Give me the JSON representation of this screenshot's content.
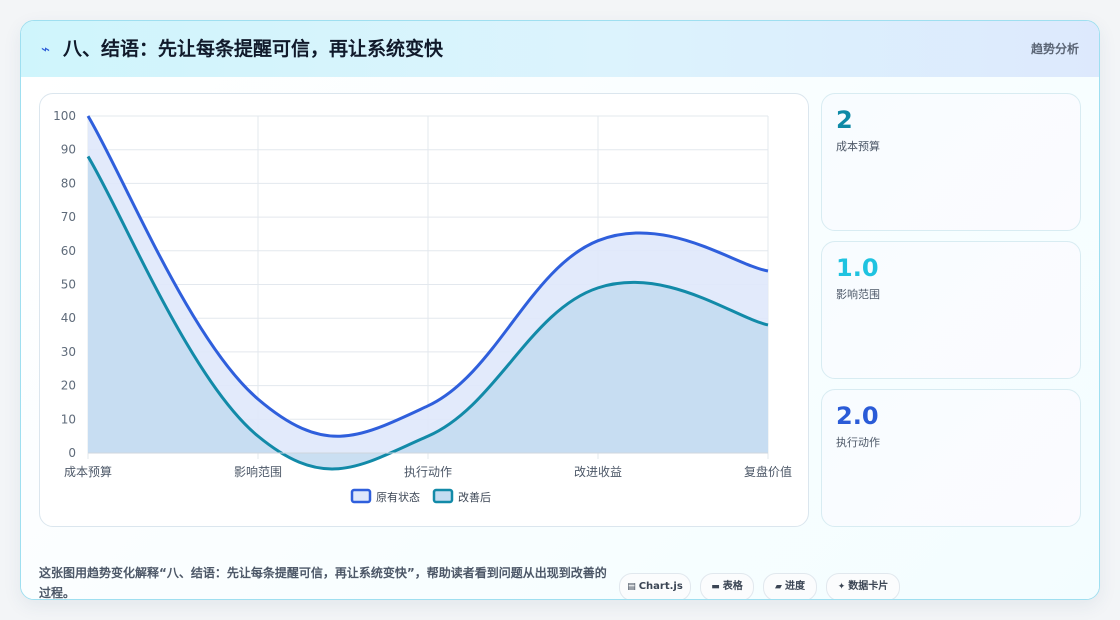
{
  "header": {
    "icon": "lightning-icon",
    "title": "八、结语：先让每条提醒可信，再让系统变快",
    "tag": "趋势分析"
  },
  "chart_data": {
    "type": "area",
    "categories": [
      "成本预算",
      "影响范围",
      "执行动作",
      "改进收益",
      "复盘价值"
    ],
    "ylim": [
      0,
      100
    ],
    "yticks": [
      0,
      10,
      20,
      30,
      40,
      50,
      60,
      70,
      80,
      90,
      100
    ],
    "grid": true,
    "legend_position": "bottom",
    "series": [
      {
        "name": "原有状态",
        "values": [
          100,
          16,
          14,
          63,
          54
        ],
        "color": "#2f5fdc",
        "fill": "#dfe8fb"
      },
      {
        "name": "改善后",
        "values": [
          88,
          5,
          5,
          49,
          38
        ],
        "color": "#128aa8",
        "fill": "#c4dcf1"
      }
    ]
  },
  "stats": [
    {
      "value": "2",
      "label": "成本预算",
      "color": "#0e8aa6"
    },
    {
      "value": "1.0",
      "label": "影响范围",
      "color": "#1fc3e0"
    },
    {
      "value": "2.0",
      "label": "执行动作",
      "color": "#2a5bd7"
    }
  ],
  "caption": "这张图用趋势变化解释“八、结语：先让每条提醒可信，再让系统变快”，帮助读者看到问题从出现到改善的过程。",
  "pills": [
    {
      "icon": "chart-icon",
      "glyph": "▤",
      "label": "Chart.js"
    },
    {
      "icon": "table-icon",
      "glyph": "▬",
      "label": "表格"
    },
    {
      "icon": "progress-icon",
      "glyph": "▰",
      "label": "进度"
    },
    {
      "icon": "sparkle-icon",
      "glyph": "✦",
      "label": "数据卡片"
    }
  ]
}
